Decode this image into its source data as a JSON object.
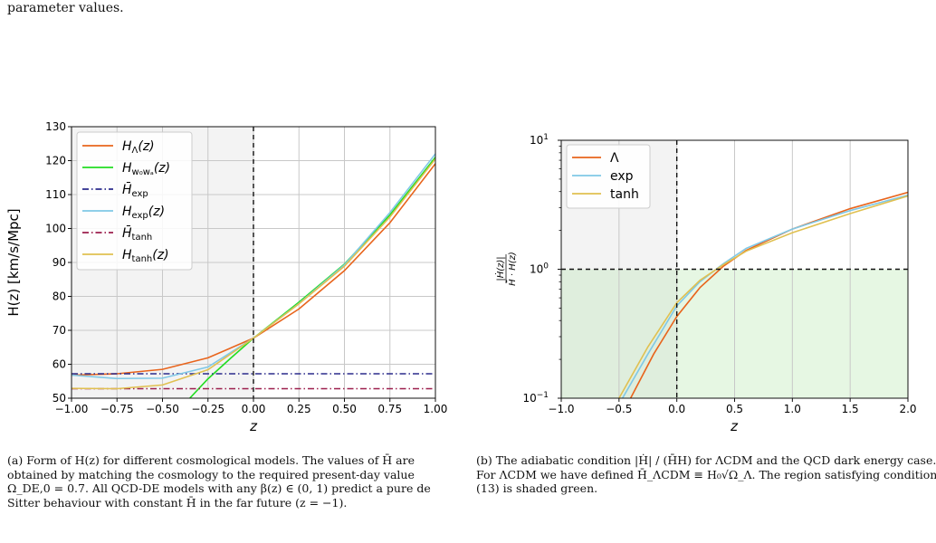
{
  "page": {
    "top_line_fragment": "parameter values."
  },
  "figure_a": {
    "chart_data": {
      "type": "line",
      "xlabel": "z",
      "ylabel": "H(z) [km/s/Mpc]",
      "xlim": [
        -1.0,
        1.0
      ],
      "ylim": [
        50,
        130
      ],
      "x_ticks": [
        "−1.00",
        "−0.75",
        "−0.50",
        "−0.25",
        "0.00",
        "0.25",
        "0.50",
        "0.75",
        "1.00"
      ],
      "y_ticks": [
        "50",
        "60",
        "70",
        "80",
        "90",
        "100",
        "110",
        "120",
        "130"
      ],
      "grid": true,
      "legend_position": "top-left",
      "shaded_region": {
        "x": [
          -1.0,
          0.0
        ],
        "color": "#f3f3f3"
      },
      "vertical_line": {
        "x": 0.0,
        "style": "dashed"
      },
      "series": [
        {
          "name": "H_Λ(z)",
          "color": "#e8641c",
          "style": "solid",
          "x": [
            -1.0,
            -0.75,
            -0.5,
            -0.25,
            0.0,
            0.25,
            0.5,
            0.75,
            1.0
          ],
          "y": [
            56.8,
            57.2,
            58.5,
            61.9,
            67.7,
            76.3,
            87.6,
            101.7,
            119.1
          ]
        },
        {
          "name": "H_{w0wa}(z)",
          "color": "#22dd22",
          "style": "solid",
          "x": [
            -0.35,
            -0.25,
            -0.125,
            0.0,
            0.25,
            0.5,
            0.75,
            1.0
          ],
          "y": [
            50.0,
            55.7,
            61.8,
            67.7,
            78.3,
            89.5,
            104.0,
            121.0
          ]
        },
        {
          "name": "H̄_exp",
          "color": "#2b2b8c",
          "style": "dashdot",
          "x": [
            -1.0,
            1.0
          ],
          "y": [
            57.2,
            57.2
          ]
        },
        {
          "name": "H_exp(z)",
          "color": "#7fc8e6",
          "style": "solid",
          "x": [
            -1.0,
            -0.75,
            -0.5,
            -0.25,
            0.0,
            0.25,
            0.5,
            0.75,
            1.0
          ],
          "y": [
            56.8,
            55.8,
            55.9,
            59.2,
            67.7,
            77.9,
            89.3,
            104.7,
            122.0
          ]
        },
        {
          "name": "H̄_tanh",
          "color": "#9c1f4d",
          "style": "dashdot",
          "x": [
            -1.0,
            1.0
          ],
          "y": [
            52.8,
            52.8
          ]
        },
        {
          "name": "H_tanh(z)",
          "color": "#e0c050",
          "style": "solid",
          "x": [
            -1.0,
            -0.75,
            -0.5,
            -0.25,
            0.0,
            0.25,
            0.5,
            0.75,
            1.0
          ],
          "y": [
            52.9,
            52.8,
            53.9,
            58.4,
            67.7,
            77.8,
            88.9,
            103.4,
            120.5
          ]
        }
      ]
    },
    "caption": {
      "label": "(a)",
      "text": "Form of H(z) for different cosmological models. The values of H̄ are obtained by matching the cosmology to the required present-day value Ω_DE,0 = 0.7. All QCD-DE models with any β(z) ∈ (0, 1) predict a pure de Sitter behaviour with constant H̄ in the far future (z = −1)."
    }
  },
  "figure_b": {
    "chart_data": {
      "type": "line",
      "xlabel": "z",
      "ylabel": "|Ḣ(z)| / (H̄ · H(z))",
      "xlim": [
        -1.0,
        2.0
      ],
      "ylim": [
        0.1,
        10
      ],
      "log_y": true,
      "x_ticks": [
        "−1.0",
        "−0.5",
        "0.0",
        "0.5",
        "1.0",
        "1.5",
        "2.0"
      ],
      "y_ticks": [
        "10^-1",
        "10^0",
        "10^1"
      ],
      "grid": true,
      "legend_position": "top-left",
      "shaded_regions": [
        {
          "x": [
            -1.0,
            0.0
          ],
          "y": [
            1,
            10
          ],
          "color": "#f3f3f3"
        },
        {
          "x": [
            -1.0,
            0.0
          ],
          "y": [
            0.1,
            1
          ],
          "color": "#dfeedd"
        },
        {
          "x": [
            0.0,
            2.0
          ],
          "y": [
            0.1,
            1
          ],
          "color": "#e6f7e3"
        }
      ],
      "vertical_line": {
        "x": 0.0,
        "style": "dashed"
      },
      "horizontal_line": {
        "y": 1.0,
        "style": "dashed"
      },
      "series": [
        {
          "name": "Λ",
          "color": "#e8641c",
          "x": [
            -0.4,
            -0.2,
            0.0,
            0.2,
            0.4,
            0.6,
            1.0,
            1.5,
            2.0
          ],
          "y": [
            0.1,
            0.22,
            0.43,
            0.72,
            1.05,
            1.4,
            2.05,
            2.95,
            3.95
          ]
        },
        {
          "name": "exp",
          "color": "#7fc8e6",
          "x": [
            -0.47,
            -0.25,
            0.0,
            0.2,
            0.4,
            0.6,
            1.0,
            1.5,
            2.0
          ],
          "y": [
            0.1,
            0.22,
            0.52,
            0.8,
            1.1,
            1.45,
            2.05,
            2.85,
            3.75
          ]
        },
        {
          "name": "tanh",
          "color": "#e0c050",
          "x": [
            -0.5,
            -0.25,
            0.0,
            0.2,
            0.4,
            0.6,
            1.0,
            1.5,
            2.0
          ],
          "y": [
            0.1,
            0.25,
            0.55,
            0.82,
            1.08,
            1.38,
            1.92,
            2.7,
            3.7
          ]
        }
      ]
    },
    "caption": {
      "label": "(b)",
      "text": "The adiabatic condition |Ḣ| / (H̄H) for ΛCDM and the QCD dark energy case. For ΛCDM we have defined H̄_ΛCDM ≡ H₀√Ω_Λ. The region satisfying condition (13) is shaded green."
    }
  }
}
